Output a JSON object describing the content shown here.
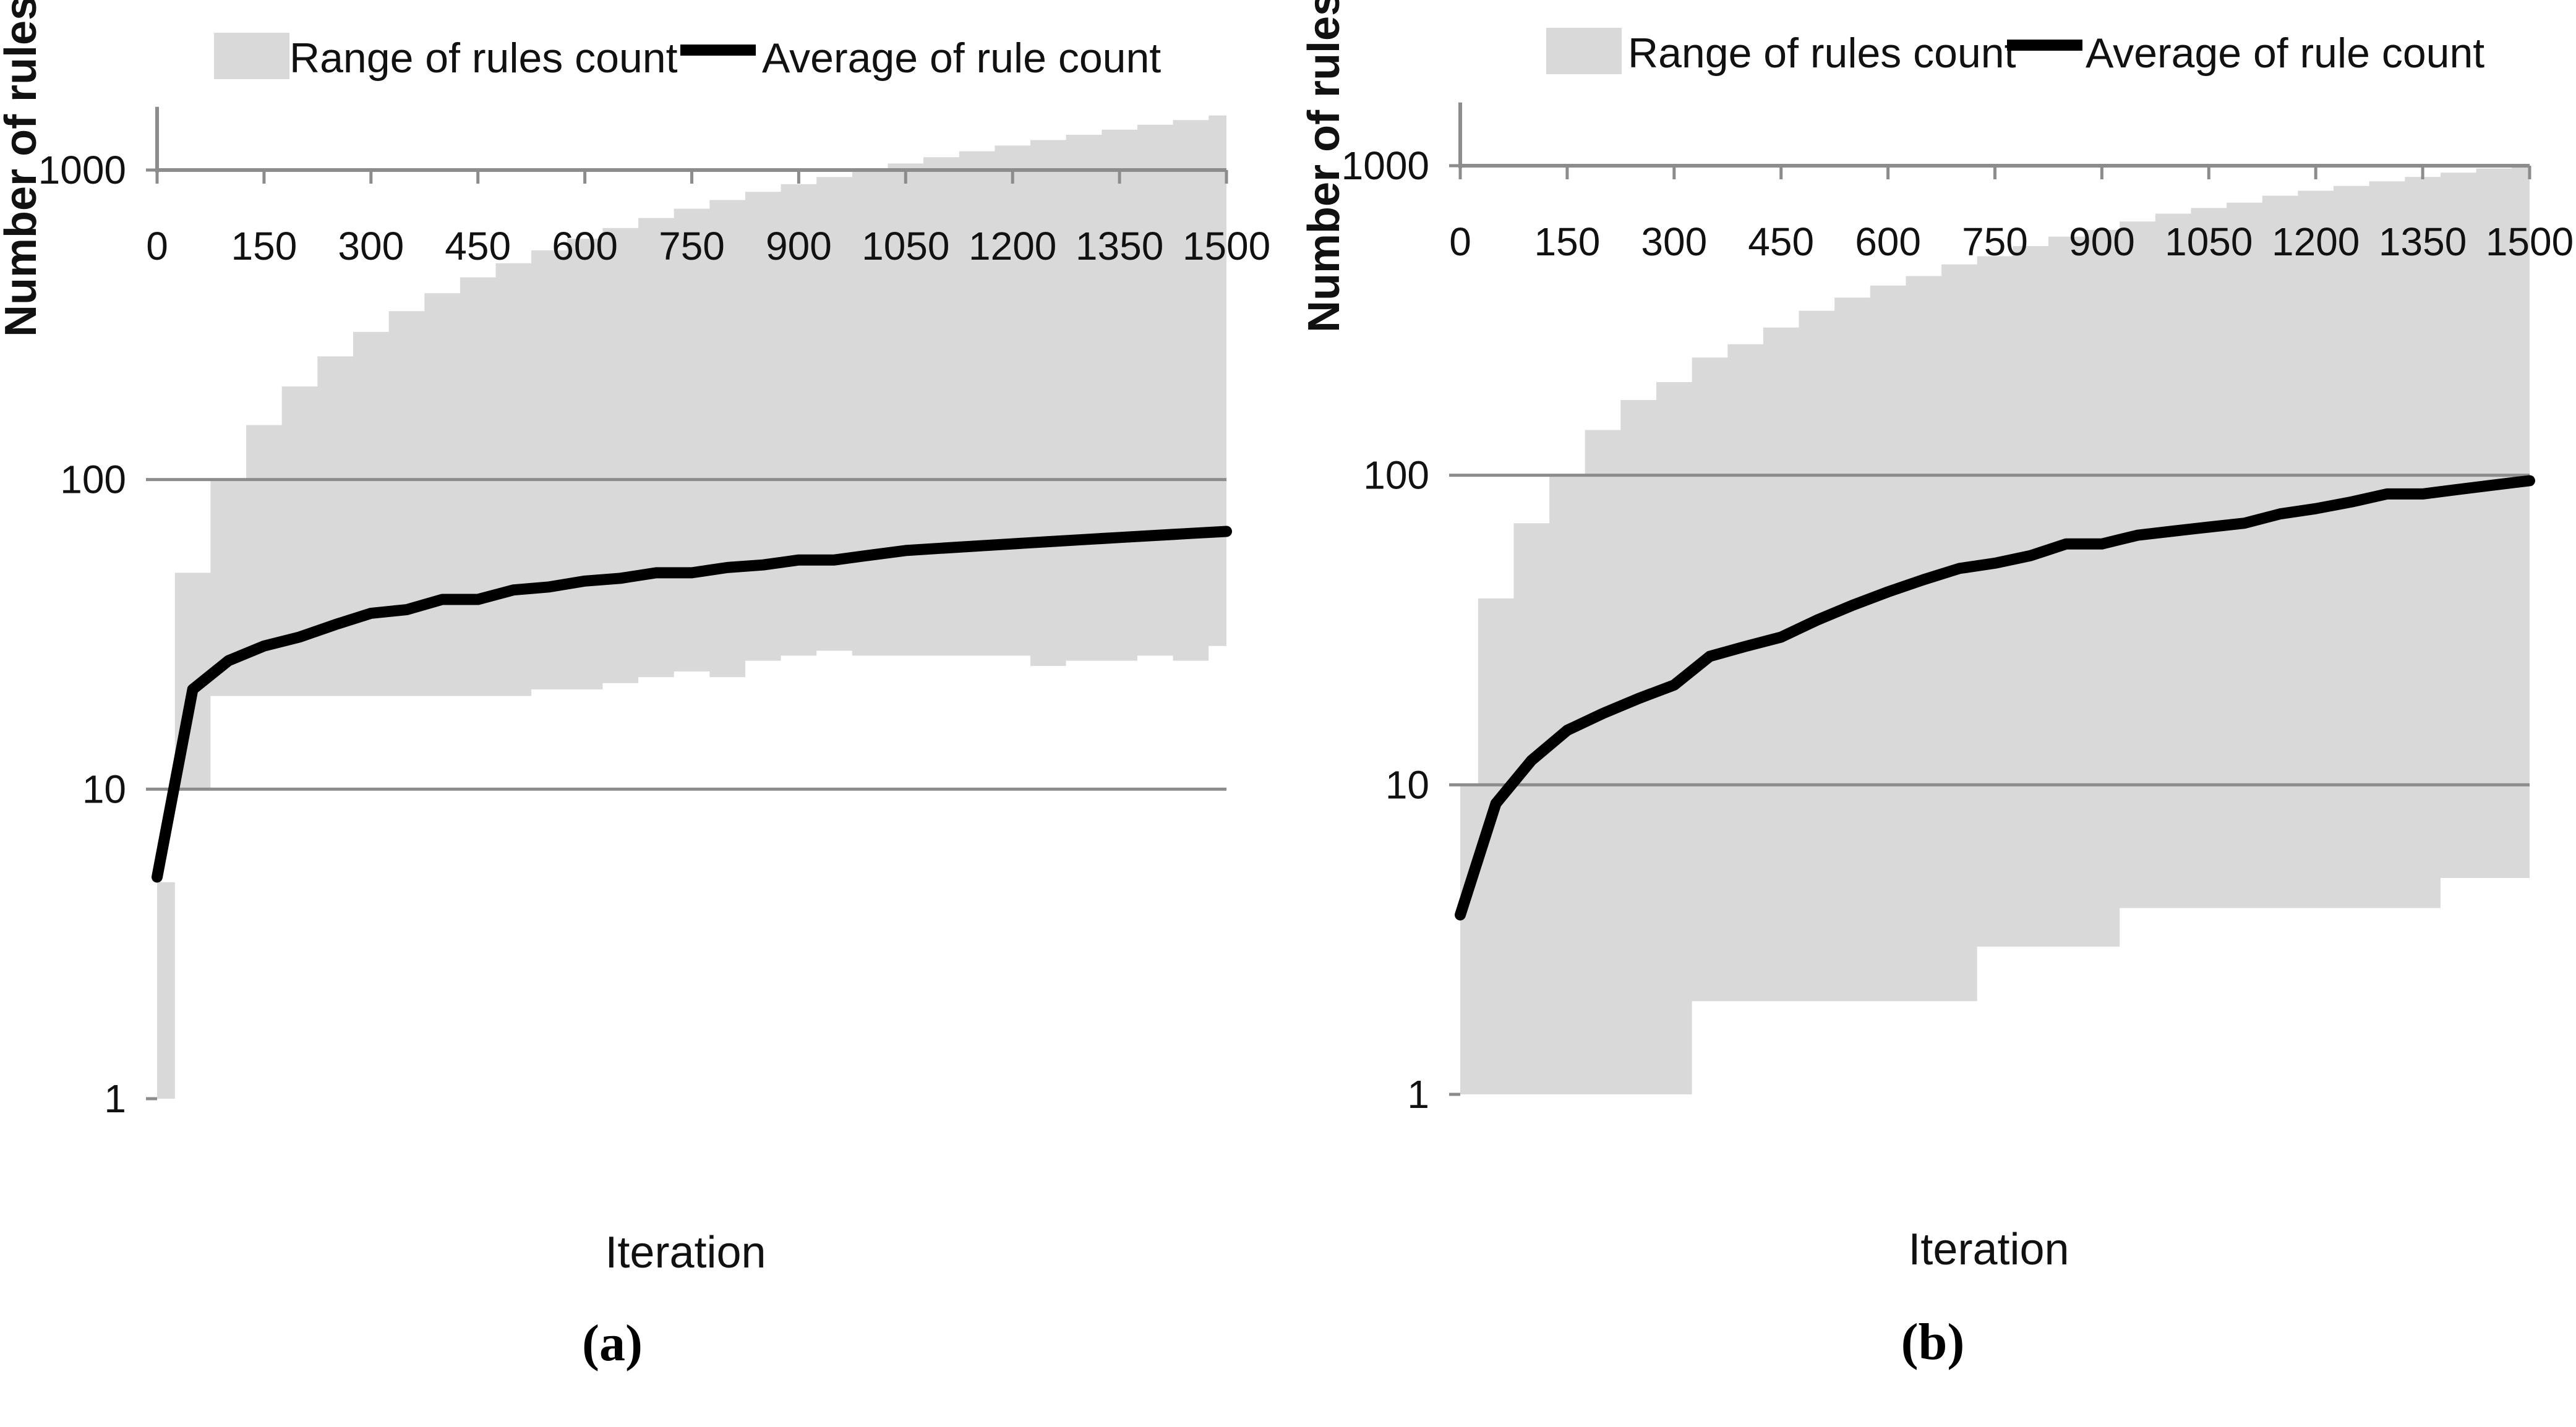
{
  "chart_data": [
    {
      "type": "area",
      "panel_label": "a",
      "ylabel": "Number of rules",
      "xlabel": "Iteration",
      "yscale": "log",
      "ylim": [
        1,
        1600
      ],
      "xlim": [
        0,
        1500
      ],
      "yticks": [
        1,
        10,
        100,
        1000
      ],
      "xticks": [
        0,
        150,
        300,
        450,
        600,
        750,
        900,
        1050,
        1200,
        1350,
        1500
      ],
      "legend": {
        "range_label": "Range of rules count",
        "avg_label": "Average of rule count",
        "position": "top"
      },
      "range": {
        "x": [
          0,
          25,
          75,
          125,
          175,
          225,
          275,
          325,
          375,
          425,
          475,
          525,
          575,
          625,
          675,
          725,
          775,
          825,
          875,
          925,
          975,
          1025,
          1075,
          1125,
          1175,
          1225,
          1275,
          1325,
          1375,
          1425,
          1475,
          1500
        ],
        "min": [
          1,
          10,
          20,
          20,
          20,
          20,
          20,
          20,
          20,
          20,
          20,
          21,
          21,
          22,
          23,
          24,
          23,
          26,
          27,
          28,
          27,
          27,
          27,
          27,
          27,
          25,
          26,
          26,
          27,
          26,
          29,
          29
        ],
        "max": [
          5,
          50,
          100,
          150,
          200,
          250,
          300,
          350,
          400,
          450,
          500,
          550,
          600,
          650,
          700,
          750,
          800,
          850,
          900,
          950,
          1000,
          1050,
          1100,
          1150,
          1200,
          1250,
          1300,
          1350,
          1400,
          1450,
          1500,
          1500
        ]
      },
      "average": {
        "x": [
          0,
          50,
          100,
          150,
          200,
          250,
          300,
          350,
          400,
          450,
          500,
          550,
          600,
          650,
          700,
          750,
          800,
          850,
          900,
          950,
          1000,
          1050,
          1100,
          1150,
          1200,
          1250,
          1300,
          1350,
          1400,
          1450,
          1500
        ],
        "y": [
          5.2,
          21,
          26,
          29,
          31,
          34,
          37,
          38,
          41,
          41,
          44,
          45,
          47,
          48,
          50,
          50,
          52,
          53,
          55,
          55,
          57,
          59,
          60,
          61,
          62,
          63,
          64,
          65,
          66,
          67,
          68
        ]
      }
    },
    {
      "type": "area",
      "panel_label": "b",
      "ylabel": "Number of rules",
      "xlabel": "Iteration",
      "yscale": "log",
      "ylim": [
        1,
        1600
      ],
      "xlim": [
        0,
        1500
      ],
      "yticks": [
        1,
        10,
        100,
        1000
      ],
      "xticks": [
        0,
        150,
        300,
        450,
        600,
        750,
        900,
        1050,
        1200,
        1350,
        1500
      ],
      "legend": {
        "range_label": "Range of rules count",
        "avg_label": "Average of rule count",
        "position": "top"
      },
      "range": {
        "x": [
          0,
          25,
          75,
          125,
          175,
          225,
          275,
          325,
          375,
          425,
          475,
          525,
          575,
          625,
          675,
          725,
          775,
          825,
          875,
          925,
          975,
          1025,
          1075,
          1125,
          1175,
          1225,
          1275,
          1325,
          1375,
          1425,
          1475,
          1500
        ],
        "min": [
          1,
          1,
          1,
          1,
          1,
          1,
          1,
          2,
          2,
          2,
          2,
          2,
          2,
          2,
          2,
          3,
          3,
          3,
          3,
          4,
          4,
          4,
          4,
          4,
          4,
          4,
          4,
          4,
          5,
          5,
          5,
          5
        ],
        "max": [
          10,
          40,
          70,
          100,
          140,
          175,
          200,
          240,
          265,
          300,
          340,
          375,
          410,
          440,
          480,
          510,
          550,
          590,
          620,
          660,
          700,
          730,
          760,
          800,
          830,
          860,
          890,
          920,
          950,
          980,
          1000,
          1000
        ]
      },
      "average": {
        "x": [
          0,
          50,
          100,
          150,
          200,
          250,
          300,
          350,
          400,
          450,
          500,
          550,
          600,
          650,
          700,
          750,
          800,
          850,
          900,
          950,
          1000,
          1050,
          1100,
          1150,
          1200,
          1250,
          1300,
          1350,
          1400,
          1450,
          1500
        ],
        "y": [
          3.8,
          8.7,
          12,
          15,
          17,
          19,
          21,
          26,
          28,
          30,
          34,
          38,
          42,
          46,
          50,
          52,
          55,
          60,
          60,
          64,
          66,
          68,
          70,
          75,
          78,
          82,
          87,
          87,
          90,
          93,
          96
        ]
      }
    }
  ]
}
